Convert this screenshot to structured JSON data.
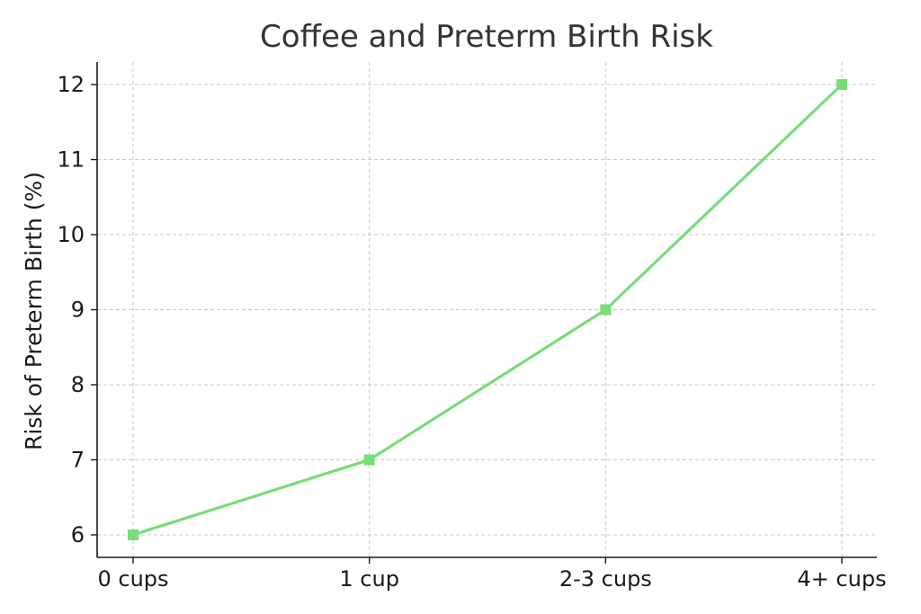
{
  "chart_data": {
    "type": "line",
    "title": "Coffee and Preterm Birth Risk",
    "xlabel": "",
    "ylabel": "Risk of Preterm Birth (%)",
    "categories": [
      "0 cups",
      "1 cup",
      "2-3 cups",
      "4+ cups"
    ],
    "series": [
      {
        "values": [
          6,
          7,
          9,
          12
        ],
        "color": "#77dd77",
        "marker": "square"
      }
    ],
    "ylim": [
      5.7,
      12.3
    ],
    "yticks": [
      6,
      7,
      8,
      9,
      10,
      11,
      12
    ],
    "grid": true,
    "legend": "none"
  }
}
